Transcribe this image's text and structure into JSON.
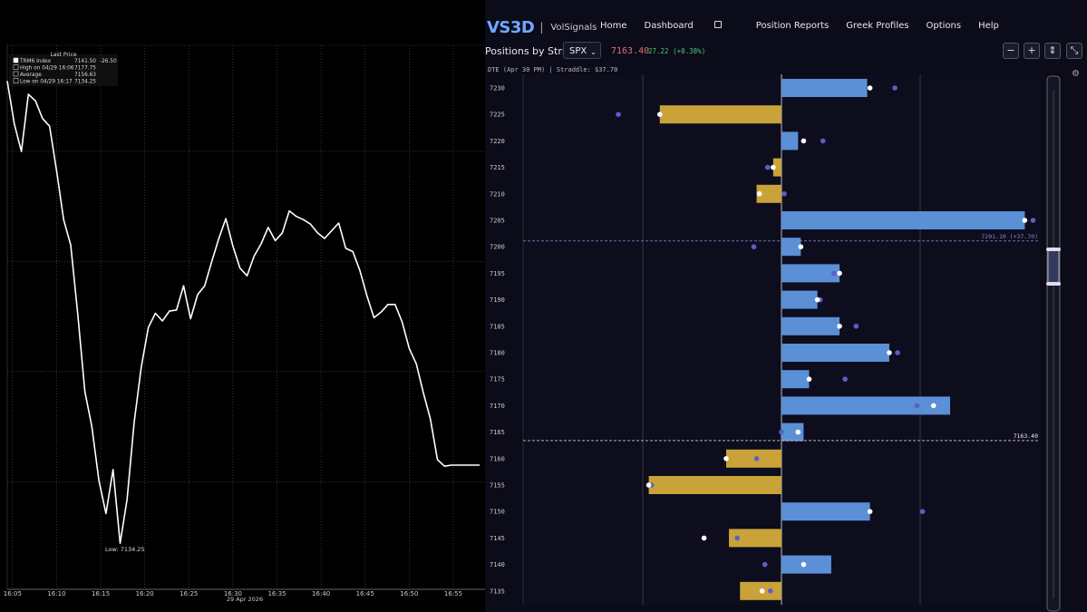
{
  "left_chart": {
    "legend": {
      "title": "Last Price",
      "rows": [
        {
          "label": "TRM6 Index",
          "value": "7141.50",
          "extra": "-26.50"
        },
        {
          "label": "High on 04/29 16:06",
          "value": "7177.75"
        },
        {
          "label": "Average",
          "value": "7156.63"
        },
        {
          "label": "Low on 04/29 16:17",
          "value": "7134.25"
        }
      ]
    },
    "low_label": "Low: 7134.25",
    "date_label": "29 Apr 2026",
    "colors": {
      "line": "#ffffff",
      "grid": "#555555"
    }
  },
  "nav": {
    "brand": "VS3D",
    "separator": "|",
    "sub": "VolSignals",
    "menu": [
      "Home",
      "Dashboard",
      "Position Reports",
      "Greek Profiles",
      "Options",
      "Help"
    ],
    "lock_icon": "lock-icon"
  },
  "toolbar": {
    "title": "Positions by Strike",
    "symbol": "SPX",
    "price": "7163.40",
    "change": "27.22 (+0.38%)",
    "buttons": [
      "−",
      "+",
      "⇕",
      "⤡"
    ]
  },
  "dte_line": "DTE (Apr 30 PM)  |  Straddle: $37.70",
  "chart_data": [
    {
      "type": "line",
      "x_ticks": [
        "16:05",
        "16:10",
        "16:15",
        "16:20",
        "16:25",
        "16:30",
        "16:35",
        "16:40",
        "16:45",
        "16:50",
        "16:55"
      ],
      "x_min_minutes": [
        4.4,
        58.6
      ],
      "ylim": [
        7134,
        7180
      ],
      "y_grid_values": [
        7170,
        7160,
        7150,
        7140
      ],
      "series": [
        {
          "x": [
            4.4,
            5.2,
            6.0,
            6.8,
            7.6,
            8.4,
            9.2,
            10.0,
            10.8,
            11.6,
            12.4,
            13.2,
            14.0,
            14.8,
            15.6,
            16.4,
            17.2,
            18.0,
            18.8,
            19.6,
            20.4,
            21.2,
            22.0,
            22.8,
            23.6,
            24.4,
            25.2,
            26.0,
            26.8,
            27.6,
            28.4,
            29.2,
            30.0,
            30.8,
            31.6,
            32.4,
            33.2,
            34.0,
            34.8,
            35.6,
            36.4,
            37.2,
            38.0,
            38.8,
            39.6,
            40.4,
            41.2,
            42.0,
            42.8,
            43.6,
            44.4,
            45.2,
            46.0,
            46.8,
            47.6,
            48.4,
            49.2,
            50.0,
            50.8,
            51.6,
            52.4,
            53.2,
            54.0,
            54.8,
            55.6,
            56.4,
            57.2,
            58.0
          ],
          "y": [
            7176.4,
            7172.5,
            7170.0,
            7175.2,
            7174.6,
            7173.0,
            7172.3,
            7168.2,
            7163.8,
            7161.5,
            7155.2,
            7148.2,
            7145.0,
            7140.1,
            7137.1,
            7141.1,
            7134.4,
            7138.4,
            7145.4,
            7150.4,
            7154.0,
            7155.3,
            7154.6,
            7155.5,
            7155.6,
            7157.8,
            7154.8,
            7157.0,
            7157.8,
            7160.0,
            7162.1,
            7163.9,
            7161.4,
            7159.4,
            7158.7,
            7160.5,
            7161.6,
            7163.1,
            7161.9,
            7162.6,
            7164.6,
            7164.1,
            7163.8,
            7163.4,
            7162.6,
            7162.1,
            7162.8,
            7163.5,
            7161.2,
            7160.9,
            7159.2,
            7156.9,
            7154.9,
            7155.4,
            7156.1,
            7156.1,
            7154.5,
            7152.1,
            7150.7,
            7148.1,
            7145.7,
            7142.0,
            7141.4,
            7141.5,
            7141.5,
            7141.5,
            7141.5,
            7141.5
          ]
        }
      ]
    },
    {
      "type": "bar",
      "title": "Positions by Strike",
      "categories": [
        "7230",
        "7225",
        "7220",
        "7215",
        "7210",
        "7205",
        "7200",
        "7195",
        "7190",
        "7185",
        "7180",
        "7175",
        "7170",
        "7165",
        "7160",
        "7155",
        "7150",
        "7145",
        "7140",
        "7135"
      ],
      "values": [
        31,
        -44,
        6,
        -3,
        -9,
        88,
        7,
        21,
        13,
        21,
        39,
        10,
        61,
        8,
        -20,
        -48,
        32,
        -19,
        18,
        -15
      ],
      "marker_white": [
        32,
        -44,
        8,
        -3,
        -8,
        88,
        7,
        21,
        13,
        21,
        39,
        10,
        55,
        6,
        -20,
        -48,
        32,
        -28,
        8,
        -7
      ],
      "marker_blue": [
        41,
        -59,
        15,
        -5,
        1,
        91,
        -10,
        19,
        14,
        27,
        42,
        23,
        49,
        0,
        -9,
        -47,
        51,
        -16,
        -6,
        -4
      ],
      "xlim": [
        -94,
        94
      ],
      "reference_lines": [
        {
          "label": "7201.10 (+37.70)",
          "strike": 7201.1
        },
        {
          "label": "7163.40",
          "strike": 7163.4
        }
      ],
      "colors": {
        "positive": "#5b8fd6",
        "negative": "#c9a33a",
        "white_marker": "#ffffff",
        "blue_marker": "#5a5fc8",
        "ref_line": "#8a86d8"
      }
    }
  ],
  "gear_icon": "gear-icon"
}
